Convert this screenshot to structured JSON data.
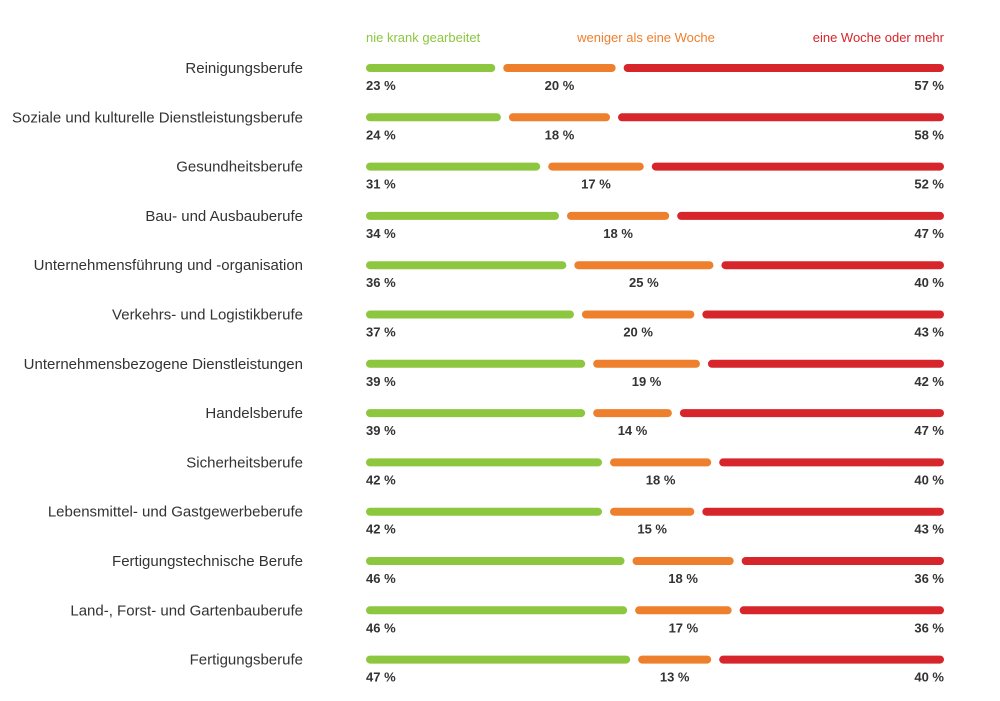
{
  "chart_data": {
    "type": "bar",
    "stacked": true,
    "orientation": "horizontal",
    "title": "",
    "xlabel": "",
    "ylabel": "",
    "unit": "%",
    "categories": [
      "Reinigungsberufe",
      "Soziale und kulturelle Dienstleistungsberufe",
      "Gesundheitsberufe",
      "Bau- und Ausbauberufe",
      "Unternehmensführung und -organisation",
      "Verkehrs- und Logistikberufe",
      "Unternehmensbezogene Dienstleistungen",
      "Handelsberufe",
      "Sicherheitsberufe",
      "Lebensmittel- und Gastgewerbeberufe",
      "Fertigungstechnische Berufe",
      "Land-, Forst- und Gartenbauberufe",
      "Fertigungsberufe"
    ],
    "series": [
      {
        "name": "nie krank gearbeitet",
        "color": "#8dc63f",
        "values": [
          23,
          24,
          31,
          34,
          36,
          37,
          39,
          39,
          42,
          42,
          46,
          46,
          47
        ]
      },
      {
        "name": "weniger als eine Woche",
        "color": "#ee7f2d",
        "values": [
          20,
          18,
          17,
          18,
          25,
          20,
          19,
          14,
          18,
          15,
          18,
          17,
          13
        ]
      },
      {
        "name": "eine Woche oder mehr",
        "color": "#d7262b",
        "values": [
          57,
          58,
          52,
          47,
          40,
          43,
          42,
          47,
          40,
          43,
          36,
          36,
          40
        ]
      }
    ],
    "value_labels": [
      [
        "23 %",
        "20 %",
        "57 %"
      ],
      [
        "24 %",
        "18 %",
        "58 %"
      ],
      [
        "31 %",
        "17 %",
        "52 %"
      ],
      [
        "34 %",
        "18 %",
        "47 %"
      ],
      [
        "36 %",
        "25 %",
        "40 %"
      ],
      [
        "37 %",
        "20 %",
        "43 %"
      ],
      [
        "39 %",
        "19 %",
        "42 %"
      ],
      [
        "39 %",
        "14 %",
        "47 %"
      ],
      [
        "42 %",
        "18 %",
        "40 %"
      ],
      [
        "42 %",
        "15 %",
        "43 %"
      ],
      [
        "46 %",
        "18 %",
        "36 %"
      ],
      [
        "46 %",
        "17 %",
        "36 %"
      ],
      [
        "47 %",
        "13 %",
        "40 %"
      ]
    ],
    "legend_position": "top"
  }
}
